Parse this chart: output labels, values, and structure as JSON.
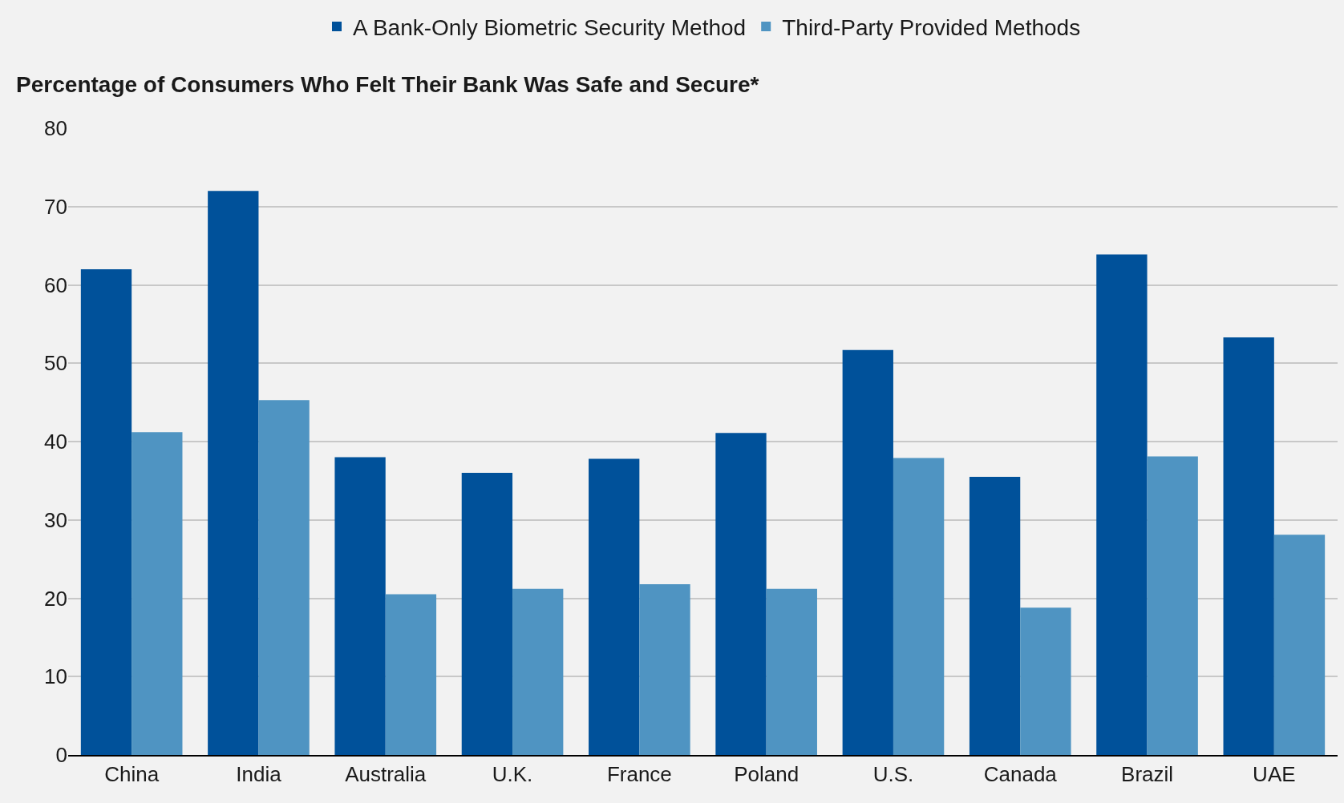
{
  "chart_data": {
    "type": "bar",
    "title": "Percentage of Consumers Who Felt Their Bank Was Safe and Secure*",
    "categories": [
      "China",
      "India",
      "Australia",
      "U.K.",
      "France",
      "Poland",
      "U.S.",
      "Canada",
      "Brazil",
      "UAE"
    ],
    "series": [
      {
        "name": "A Bank-Only Biometric Security Method",
        "color": "#00519a",
        "values": [
          62,
          72,
          38,
          36,
          37.8,
          41.1,
          51.7,
          35.5,
          63.9,
          53.3
        ]
      },
      {
        "name": "Third-Party Provided Methods",
        "color": "#4f94c2",
        "values": [
          41.2,
          45.3,
          20.5,
          21.2,
          21.8,
          21.2,
          37.9,
          18.8,
          38.1,
          28.1
        ]
      }
    ],
    "ylim": [
      0,
      80
    ],
    "yticks": [
      0,
      10,
      20,
      30,
      40,
      50,
      60,
      70,
      80
    ],
    "grid": "y",
    "legend": "top"
  }
}
